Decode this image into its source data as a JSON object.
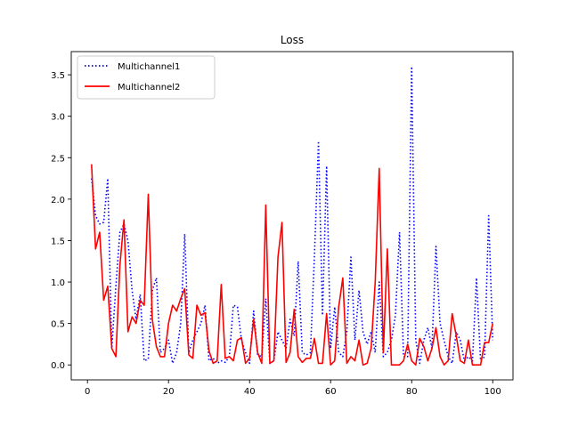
{
  "chart_data": {
    "type": "line",
    "title": "Loss",
    "xlabel": "",
    "ylabel": "",
    "xlim": [
      -4,
      105
    ],
    "ylim": [
      -0.18,
      3.78
    ],
    "xticks": [
      0,
      20,
      40,
      60,
      80,
      100
    ],
    "yticks": [
      0.0,
      0.5,
      1.0,
      1.5,
      2.0,
      2.5,
      3.0,
      3.5
    ],
    "xtick_labels": [
      "0",
      "20",
      "40",
      "60",
      "80",
      "100"
    ],
    "ytick_labels": [
      "0.0",
      "0.5",
      "1.0",
      "1.5",
      "2.0",
      "2.5",
      "3.0",
      "3.5"
    ],
    "grid": false,
    "legend_position": "upper-left",
    "x": [
      1,
      2,
      3,
      4,
      5,
      6,
      7,
      8,
      9,
      10,
      11,
      12,
      13,
      14,
      15,
      16,
      17,
      18,
      19,
      20,
      21,
      22,
      23,
      24,
      25,
      26,
      27,
      28,
      29,
      30,
      31,
      32,
      33,
      34,
      35,
      36,
      37,
      38,
      39,
      40,
      41,
      42,
      43,
      44,
      45,
      46,
      47,
      48,
      49,
      50,
      51,
      52,
      53,
      54,
      55,
      56,
      57,
      58,
      59,
      60,
      61,
      62,
      63,
      64,
      65,
      66,
      67,
      68,
      69,
      70,
      71,
      72,
      73,
      74,
      75,
      76,
      77,
      78,
      79,
      80,
      81,
      82,
      83,
      84,
      85,
      86,
      87,
      88,
      89,
      90,
      91,
      92,
      93,
      94,
      95,
      96,
      97,
      98,
      99,
      100
    ],
    "series": [
      {
        "name": "Multichannel1",
        "color": "#0000ff",
        "style": "dotted",
        "values": [
          2.25,
          1.8,
          1.7,
          1.72,
          2.25,
          0.2,
          0.95,
          1.6,
          1.7,
          1.5,
          0.9,
          0.55,
          0.85,
          0.05,
          0.07,
          0.9,
          1.05,
          0.15,
          0.2,
          0.3,
          0.02,
          0.15,
          0.5,
          1.58,
          0.15,
          0.3,
          0.4,
          0.5,
          0.72,
          0.05,
          0.08,
          0.02,
          0.05,
          0.03,
          0.1,
          0.72,
          0.7,
          0.3,
          0.15,
          0.02,
          0.65,
          0.12,
          0.1,
          0.8,
          0.02,
          0.05,
          0.4,
          0.3,
          0.2,
          0.55,
          0.35,
          1.25,
          0.15,
          0.12,
          0.15,
          1.3,
          2.7,
          0.6,
          2.4,
          0.2,
          0.7,
          0.15,
          0.1,
          0.4,
          1.3,
          0.3,
          0.9,
          0.4,
          0.25,
          0.4,
          0.15,
          1.0,
          0.1,
          0.15,
          0.3,
          0.6,
          1.6,
          0.1,
          0.1,
          3.6,
          0.3,
          0.02,
          0.3,
          0.45,
          0.2,
          1.43,
          0.5,
          0.3,
          0.1,
          0.02,
          0.4,
          0.3,
          0.05,
          0.1,
          0.05,
          1.05,
          0.05,
          0.1,
          1.8,
          0.3
        ]
      },
      {
        "name": "Multichannel2",
        "color": "#ff0000",
        "style": "solid",
        "values": [
          2.42,
          1.4,
          1.6,
          0.78,
          0.95,
          0.2,
          0.1,
          1.2,
          1.75,
          0.4,
          0.58,
          0.5,
          0.78,
          0.72,
          2.06,
          0.55,
          0.22,
          0.1,
          0.1,
          0.5,
          0.72,
          0.65,
          0.8,
          0.92,
          0.12,
          0.08,
          0.72,
          0.6,
          0.63,
          0.17,
          0.02,
          0.05,
          0.97,
          0.08,
          0.1,
          0.05,
          0.3,
          0.33,
          0.02,
          0.08,
          0.55,
          0.15,
          0.02,
          1.93,
          0.02,
          0.05,
          1.3,
          1.72,
          0.03,
          0.15,
          0.67,
          0.1,
          0.03,
          0.08,
          0.08,
          0.32,
          0.02,
          0.02,
          0.62,
          0.0,
          0.05,
          0.7,
          1.05,
          0.02,
          0.1,
          0.05,
          0.3,
          0.0,
          0.02,
          0.2,
          1.0,
          2.37,
          0.15,
          1.4,
          0.0,
          0.0,
          0.0,
          0.05,
          0.25,
          0.05,
          0.0,
          0.32,
          0.22,
          0.05,
          0.2,
          0.45,
          0.1,
          0.0,
          0.05,
          0.62,
          0.35,
          0.05,
          0.02,
          0.3,
          0.0,
          0.0,
          0.0,
          0.27,
          0.27,
          0.5
        ]
      }
    ]
  }
}
